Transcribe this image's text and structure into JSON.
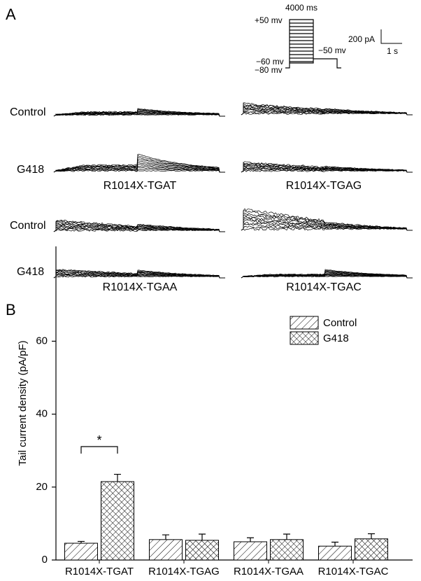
{
  "panel_a": {
    "label": "A",
    "protocol": {
      "duration": "4000 ms",
      "v_high": "+50 mv",
      "v_low": "−60 mv",
      "v_hold": "−80 mv",
      "v_tail": "−50 mv"
    },
    "scale_bar": {
      "current": "200 pA",
      "time": "1 s"
    },
    "rows": [
      "Control",
      "G418",
      "Control",
      "G418"
    ],
    "constructs": [
      "R1014X-TGAT",
      "R1014X-TGAG",
      "R1014X-TGAA",
      "R1014X-TGAC"
    ]
  },
  "panel_b": {
    "label": "B"
  },
  "chart_data": {
    "type": "bar",
    "y_label": "Tail current density (pA/pF)",
    "categories": [
      "R1014X-TGAT",
      "R1014X-TGAG",
      "R1014X-TGAA",
      "R1014X-TGAC"
    ],
    "series": [
      {
        "name": "Control",
        "color": "#000000",
        "hatch": "diagonal",
        "values": [
          4.6,
          5.6,
          5.0,
          3.8
        ],
        "errors": [
          0.5,
          1.3,
          1.1,
          1.1
        ]
      },
      {
        "name": "G418",
        "color": "#000000",
        "hatch": "crosshatch",
        "values": [
          21.5,
          5.4,
          5.6,
          5.8
        ],
        "errors": [
          2.0,
          1.7,
          1.5,
          1.4
        ]
      }
    ],
    "ylim": [
      0,
      86
    ],
    "yticks": [
      0,
      20,
      40,
      60
    ],
    "significance": "*",
    "legend": "top-right"
  }
}
